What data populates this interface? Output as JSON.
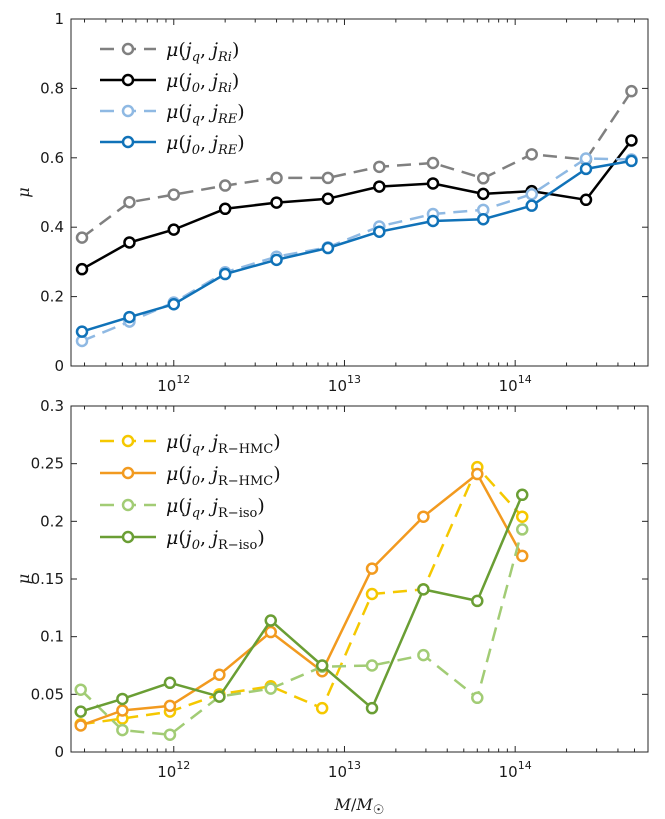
{
  "chart_data": [
    {
      "type": "line",
      "ylabel": "μ",
      "xlabel": "",
      "xscale": "log",
      "xlim": [
        250000000000.0,
        600000000000000.0
      ],
      "ylim": [
        0,
        1
      ],
      "yticks": [
        0,
        0.2,
        0.4,
        0.6,
        0.8,
        1
      ],
      "ytick_labels": [
        "0",
        "0.2",
        "0.4",
        "0.6",
        "0.8",
        "1"
      ],
      "xticks": [
        1000000000000.0,
        10000000000000.0,
        100000000000000.0
      ],
      "xtick_labels": [
        {
          "base": "10",
          "exp": "12"
        },
        {
          "base": "10",
          "exp": "13"
        },
        {
          "base": "10",
          "exp": "14"
        }
      ],
      "legend_position": "top-left",
      "x": [
        290000000000.0,
        550000000000.0,
        1000000000000.0,
        2000000000000.0,
        4000000000000.0,
        8000000000000.0,
        16000000000000.0,
        33000000000000.0,
        65000000000000.0,
        125000000000000.0,
        260000000000000.0,
        480000000000000.0
      ],
      "series": [
        {
          "name": "μ(j_q, j_Ri)",
          "legend": {
            "head": "μ(",
            "a": "j",
            "as": "q",
            "b": "j",
            "bs": "Ri",
            "tail": ")"
          },
          "color": "#808080",
          "dashed": true,
          "values": [
            0.37,
            0.472,
            0.494,
            0.52,
            0.542,
            0.542,
            0.574,
            0.585,
            0.541,
            0.61,
            0.595,
            0.792
          ]
        },
        {
          "name": "μ(j_0, j_Ri)",
          "legend": {
            "head": "μ(",
            "a": "j",
            "as": "0",
            "b": "j",
            "bs": "Ri",
            "tail": ")"
          },
          "color": "#000000",
          "dashed": false,
          "values": [
            0.279,
            0.356,
            0.393,
            0.453,
            0.471,
            0.482,
            0.517,
            0.526,
            0.496,
            0.504,
            0.479,
            0.65
          ]
        },
        {
          "name": "μ(j_q, j_RE)",
          "legend": {
            "head": "μ(",
            "a": "j",
            "as": "q",
            "b": "j",
            "bs": "RE",
            "tail": ")"
          },
          "color": "#8fb9e3",
          "dashed": true,
          "values": [
            0.072,
            0.128,
            0.183,
            0.27,
            0.315,
            0.342,
            0.402,
            0.438,
            0.45,
            0.495,
            0.598,
            0.595
          ]
        },
        {
          "name": "μ(j_0, j_RE)",
          "legend": {
            "head": "μ(",
            "a": "j",
            "as": "0",
            "b": "j",
            "bs": "RE",
            "tail": ")"
          },
          "color": "#1072b8",
          "dashed": false,
          "values": [
            0.099,
            0.141,
            0.178,
            0.265,
            0.306,
            0.34,
            0.387,
            0.418,
            0.423,
            0.462,
            0.568,
            0.591
          ]
        }
      ]
    },
    {
      "type": "line",
      "ylabel": "μ",
      "xlabel": "M/M☉",
      "xlabel_parts": {
        "m1": "M",
        "slash": "/",
        "m2": "M",
        "sub": "☉"
      },
      "xscale": "log",
      "xlim": [
        250000000000.0,
        600000000000000.0
      ],
      "ylim": [
        0,
        0.3
      ],
      "yticks": [
        0,
        0.05,
        0.1,
        0.15,
        0.2,
        0.25,
        0.3
      ],
      "ytick_labels": [
        "0",
        "0.05",
        "0.1",
        "0.15",
        "0.2",
        "0.25",
        "0.3"
      ],
      "xticks": [
        1000000000000.0,
        10000000000000.0,
        100000000000000.0
      ],
      "xtick_labels": [
        {
          "base": "10",
          "exp": "12"
        },
        {
          "base": "10",
          "exp": "13"
        },
        {
          "base": "10",
          "exp": "14"
        }
      ],
      "legend_position": "top-left",
      "x": [
        285000000000.0,
        500000000000.0,
        950000000000.0,
        1850000000000.0,
        3700000000000.0,
        7400000000000.0,
        14500000000000.0,
        29000000000000.0,
        60000000000000.0,
        110000000000000.0
      ],
      "series": [
        {
          "name": "μ(j_q, j_R-HMC)",
          "legend": {
            "head": "μ(",
            "a": "j",
            "as": "q",
            "b": "j",
            "bs": "R−HMC",
            "tail": ")"
          },
          "color": "#f5c800",
          "dashed": true,
          "values": [
            0.024,
            0.029,
            0.035,
            0.05,
            0.057,
            0.038,
            0.137,
            0.141,
            0.247,
            0.204
          ]
        },
        {
          "name": "μ(j_0, j_R-HMC)",
          "legend": {
            "head": "μ(",
            "a": "j",
            "as": "0",
            "b": "j",
            "bs": "R−HMC",
            "tail": ")"
          },
          "color": "#f29a1f",
          "dashed": false,
          "values": [
            0.023,
            0.036,
            0.04,
            0.067,
            0.104,
            0.07,
            0.159,
            0.204,
            0.241,
            0.17
          ]
        },
        {
          "name": "μ(j_q, j_R-iso)",
          "legend": {
            "head": "μ(",
            "a": "j",
            "as": "q",
            "b": "j",
            "bs": "R−iso",
            "tail": ")"
          },
          "color": "#a2cc75",
          "dashed": true,
          "values": [
            0.054,
            0.019,
            0.015,
            0.048,
            0.055,
            0.074,
            0.075,
            0.084,
            0.047,
            0.193
          ]
        },
        {
          "name": "μ(j_0, j_R-iso)",
          "legend": {
            "head": "μ(",
            "a": "j",
            "as": "0",
            "b": "j",
            "bs": "R−iso",
            "tail": ")"
          },
          "color": "#6a9e34",
          "dashed": false,
          "values": [
            0.035,
            0.046,
            0.06,
            0.048,
            0.114,
            0.075,
            0.038,
            0.141,
            0.131,
            0.223
          ]
        }
      ]
    }
  ]
}
